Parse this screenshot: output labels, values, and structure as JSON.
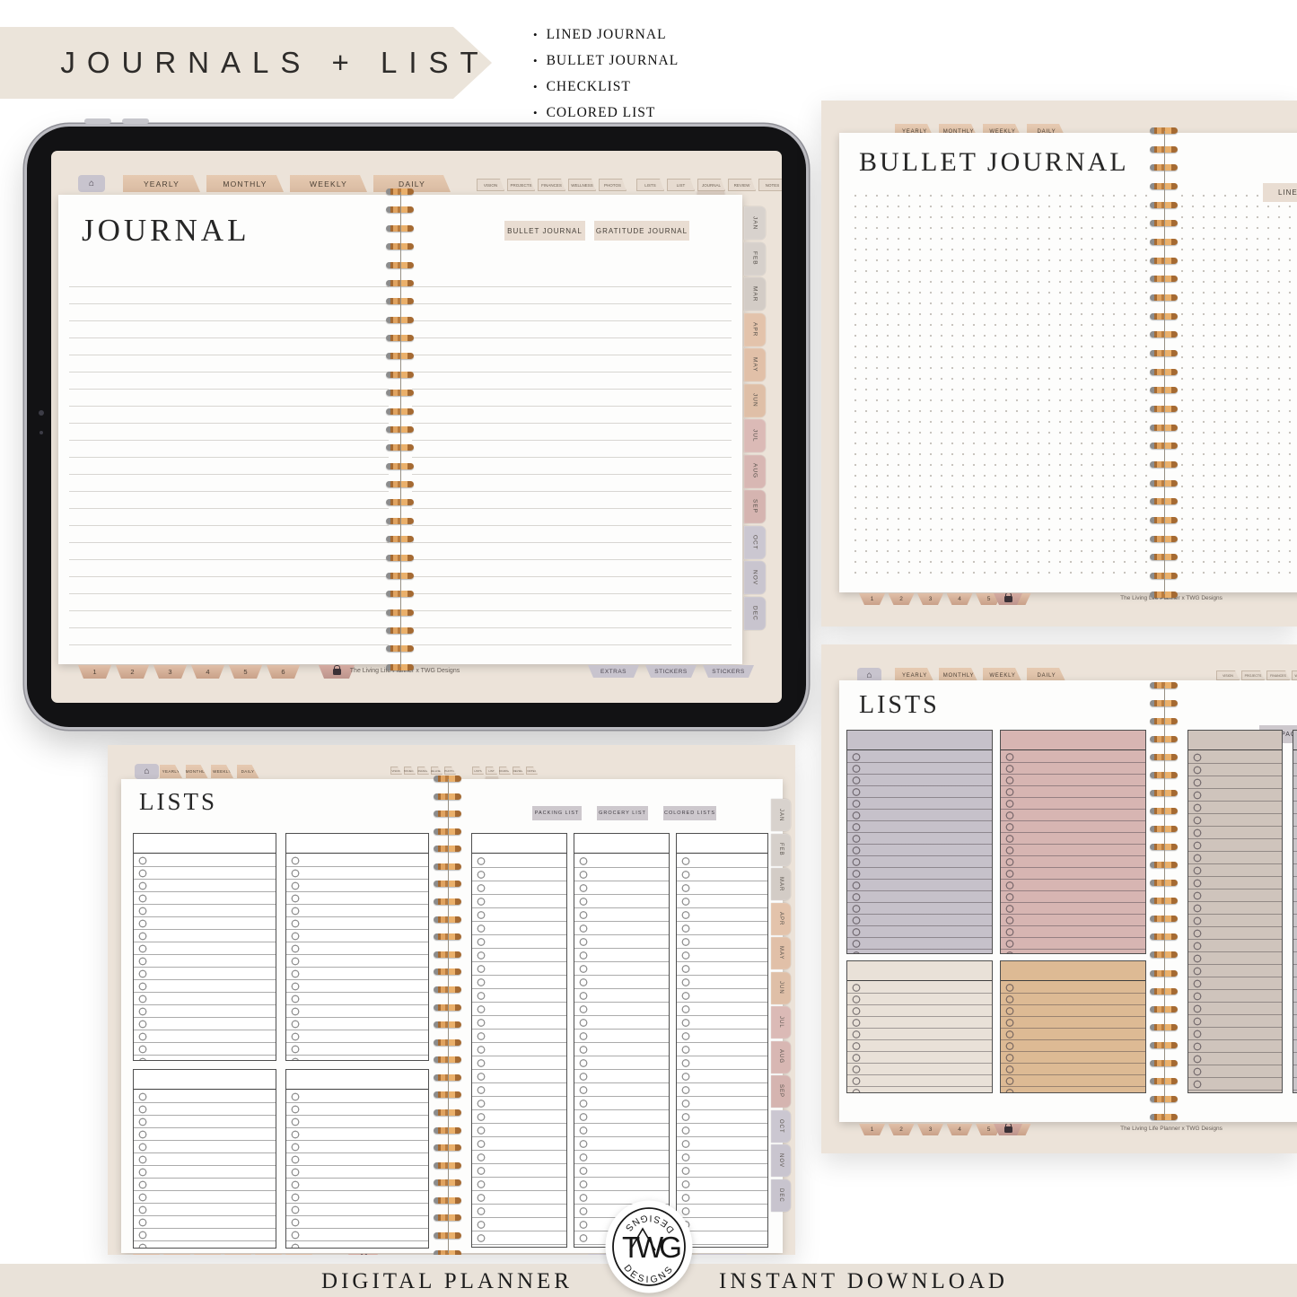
{
  "header": {
    "title": "JOURNALS + LISTS",
    "features": [
      "LINED JOURNAL",
      "BULLET JOURNAL",
      "CHECKLIST",
      "COLORED LIST"
    ]
  },
  "common": {
    "home_glyph": "⌂",
    "main_tabs": [
      "YEARLY",
      "MONTHLY",
      "WEEKLY",
      "DAILY"
    ],
    "side_tabs_left": [
      "VISION",
      "PROJECTS",
      "FINANCES",
      "WELLNESS",
      "PHOTOS"
    ],
    "side_tabs_right": [
      "LISTS",
      "LIST",
      "JOURNAL",
      "REVIEW",
      "NOTES"
    ],
    "months": [
      {
        "label": "JAN",
        "color": "#d8d2cd"
      },
      {
        "label": "FEB",
        "color": "#d6d0cb"
      },
      {
        "label": "MAR",
        "color": "#d3ccc6"
      },
      {
        "label": "APR",
        "color": "#e3c3ab"
      },
      {
        "label": "MAY",
        "color": "#e1c0a8"
      },
      {
        "label": "JUN",
        "color": "#dfbfa7"
      },
      {
        "label": "JUL",
        "color": "#dbbab6"
      },
      {
        "label": "AUG",
        "color": "#d8b7b3"
      },
      {
        "label": "SEP",
        "color": "#d5b4b0"
      },
      {
        "label": "OCT",
        "color": "#cbc7d1"
      },
      {
        "label": "NOV",
        "color": "#c9c5cf"
      },
      {
        "label": "DEC",
        "color": "#c8c4ce"
      }
    ],
    "page_numbers": [
      "1",
      "2",
      "3",
      "4",
      "5",
      "6"
    ],
    "corner_tabs": [
      "EXTRAS",
      "STICKERS",
      "STICKERS"
    ],
    "brand": "The Living Life Planner  x  TWG Designs"
  },
  "journal": {
    "title": "JOURNAL",
    "buttons": [
      "BULLET JOURNAL",
      "GRATITUDE JOURNAL"
    ]
  },
  "bullet": {
    "title": "BULLET JOURNAL",
    "button": "LINED JOURNAL"
  },
  "lists": {
    "title": "LISTS",
    "buttons": [
      "PACKING LIST",
      "GROCERY LIST",
      "COLORED LISTS"
    ]
  },
  "colored_lists": {
    "title": "LISTS",
    "button": "PACKING LIST",
    "box_colors": {
      "lavender": "#c6c1ca",
      "pink": "#d7b5b2",
      "cream": "#e9e1d8",
      "tan": "#ddba94",
      "taupe": "#cfc4bc",
      "grey": "#c9c5c9"
    }
  },
  "footer": {
    "left": "DIGITAL PLANNER",
    "right": "INSTANT DOWNLOAD",
    "logo_monogram": "TWG",
    "logo_word_top": "DESIGNS",
    "logo_word_bottom": "DESIGNS"
  }
}
